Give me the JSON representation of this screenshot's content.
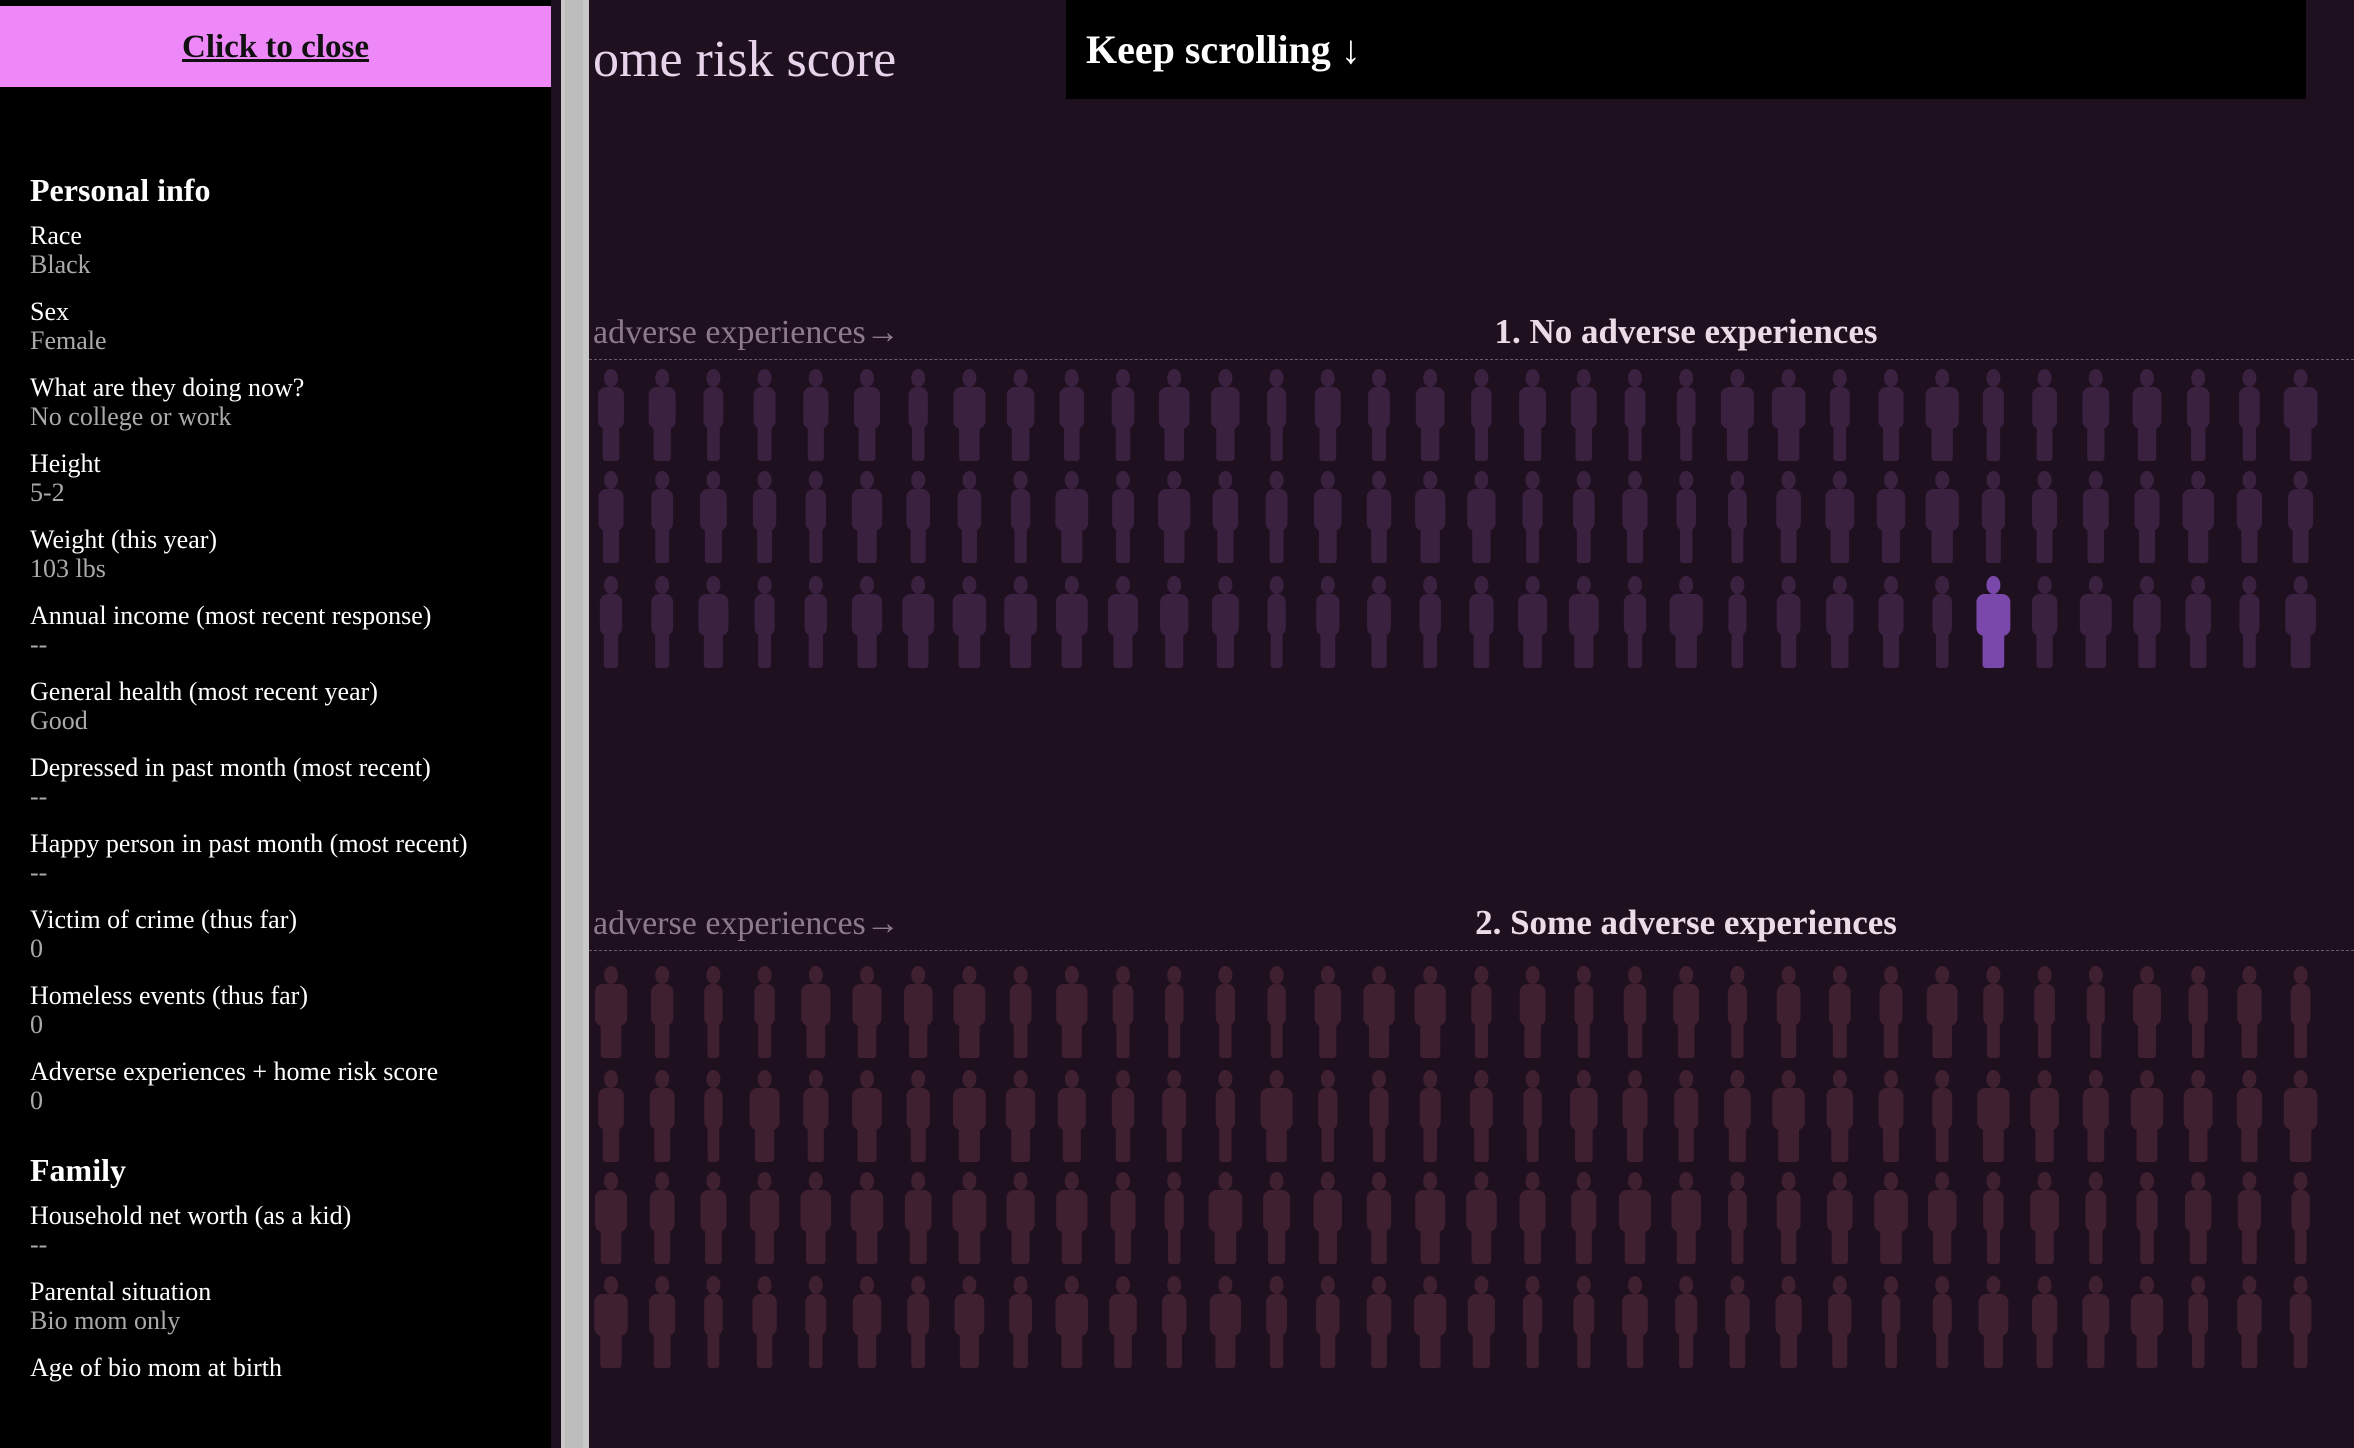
{
  "sidebar": {
    "close_button": "Click to close",
    "sections": [
      {
        "heading": "Personal info",
        "fields": [
          {
            "label": "Race",
            "value": "Black"
          },
          {
            "label": "Sex",
            "value": "Female"
          },
          {
            "label": "What are they doing now?",
            "value": "No college or work"
          },
          {
            "label": "Height",
            "value": "5-2"
          },
          {
            "label": "Weight (this year)",
            "value": "103 lbs"
          },
          {
            "label": "Annual income (most recent response)",
            "value": "--"
          },
          {
            "label": "General health (most recent year)",
            "value": "Good"
          },
          {
            "label": "Depressed in past month (most recent)",
            "value": "--"
          },
          {
            "label": "Happy person in past month (most recent)",
            "value": "--"
          },
          {
            "label": "Victim of crime (thus far)",
            "value": "0"
          },
          {
            "label": "Homeless events (thus far)",
            "value": "0"
          },
          {
            "label": "Adverse experiences + home risk score",
            "value": "0"
          }
        ]
      },
      {
        "heading": "Family",
        "fields": [
          {
            "label": "Household net worth (as a kid)",
            "value": "--"
          },
          {
            "label": "Parental situation",
            "value": "Bio mom only"
          },
          {
            "label": "Age of bio mom at birth"
          }
        ]
      }
    ]
  },
  "main": {
    "title_fragment": "ome risk score",
    "scroll_prompt": "Keep scrolling ↓",
    "groups": [
      {
        "heading": "1. No adverse experiences",
        "axis_fragment": "adverse experiences→"
      },
      {
        "heading": "2. Some adverse experiences",
        "axis_fragment": "adverse experiences→"
      }
    ]
  }
}
